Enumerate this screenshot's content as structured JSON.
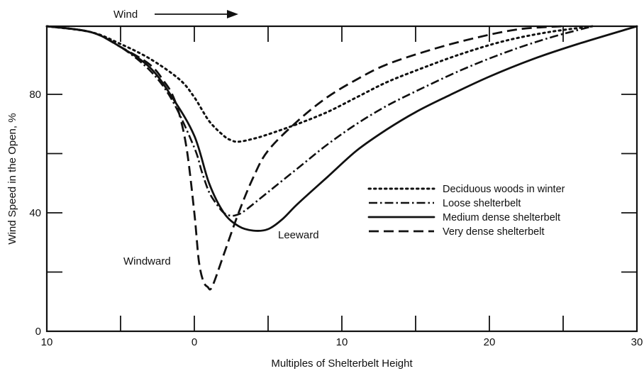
{
  "chart_data": {
    "type": "line",
    "title": "",
    "xlabel": "Multiples of Shelterbelt Height",
    "ylabel": "Wind Speed in the Open, %",
    "xlim": [
      -10,
      30
    ],
    "ylim": [
      0,
      103
    ],
    "x_ticks": [
      {
        "value": -10,
        "label": "10"
      },
      {
        "value": 0,
        "label": "0"
      },
      {
        "value": 10,
        "label": "10"
      },
      {
        "value": 20,
        "label": "20"
      },
      {
        "value": 30,
        "label": "30"
      }
    ],
    "x_minor_ticks": [
      -5,
      5,
      15,
      25
    ],
    "y_ticks": [
      {
        "value": 0,
        "label": "0"
      },
      {
        "value": 40,
        "label": "40"
      },
      {
        "value": 80,
        "label": "80"
      }
    ],
    "y_minor_ticks": [
      20,
      60
    ],
    "grid": false,
    "legend_position": "right",
    "annotations": {
      "wind": "Wind",
      "windward": "Windward",
      "leeward": "Leeward"
    },
    "series": [
      {
        "name": "Deciduous woods in winter",
        "dash": "dotted",
        "x": [
          -10,
          -7,
          -5,
          -3,
          -1,
          0,
          1,
          2,
          2.5,
          3,
          4,
          5,
          7,
          9,
          11,
          13,
          15,
          18,
          21,
          24,
          27
        ],
        "y": [
          103,
          101,
          97,
          92,
          85,
          79,
          71,
          66,
          64.5,
          64,
          65,
          66.5,
          70,
          74,
          79,
          84,
          88,
          93.5,
          98,
          101,
          103
        ]
      },
      {
        "name": "Loose shelterbelt",
        "dash": "dashdot",
        "x": [
          -10,
          -7,
          -5,
          -3,
          -1.5,
          0,
          0.5,
          1,
          1.5,
          2,
          2.5,
          3,
          3.5,
          5,
          7,
          9,
          11,
          13,
          15,
          18,
          21,
          24,
          27
        ],
        "y": [
          103,
          101,
          96,
          88,
          78,
          62,
          54,
          47,
          43,
          40,
          39,
          39.5,
          41,
          47,
          55,
          63,
          70,
          76,
          81,
          88,
          94,
          99,
          103
        ]
      },
      {
        "name": "Medium dense shelterbelt",
        "dash": "solid",
        "x": [
          -10,
          -7,
          -5,
          -3,
          -1.5,
          0,
          1,
          2,
          3,
          4,
          5,
          6,
          7,
          9,
          11,
          13,
          15,
          17,
          20,
          23,
          26,
          30
        ],
        "y": [
          103,
          101,
          96,
          89,
          79,
          66,
          50,
          40,
          35.5,
          34,
          34.5,
          38,
          43,
          52,
          61,
          68,
          74,
          79,
          86,
          92,
          97,
          103
        ]
      },
      {
        "name": "Very dense shelterbelt",
        "dash": "dashed",
        "x": [
          -10,
          -7,
          -5,
          -3,
          -2,
          -1.5,
          -1,
          -0.5,
          0,
          0.3,
          0.6,
          0.9,
          1.2,
          2,
          3,
          4,
          5,
          7,
          9,
          11,
          13,
          16,
          19,
          22,
          25
        ],
        "y": [
          103,
          101,
          96,
          90,
          84,
          80,
          73,
          61,
          40,
          24,
          17,
          15,
          15,
          26,
          40,
          52,
          61,
          71,
          79,
          85,
          90,
          95,
          99,
          102,
          103
        ]
      }
    ]
  }
}
